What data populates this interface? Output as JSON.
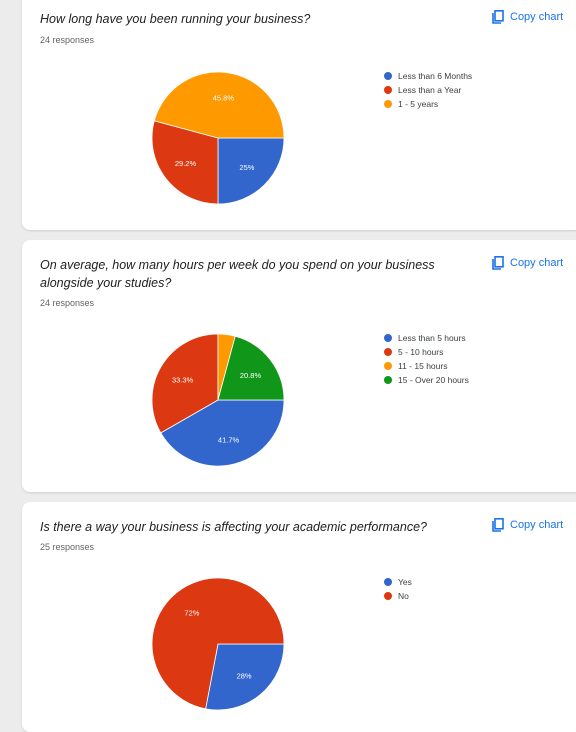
{
  "colors": {
    "blue": "#3366cc",
    "red": "#dc3912",
    "orange": "#ff9900",
    "green": "#109618",
    "accent": "#1a73e8"
  },
  "copy_label": "Copy chart",
  "questions": [
    {
      "title": "How long have you been running your business?",
      "responses": "24 responses"
    },
    {
      "title": "On average, how many hours per week do you spend on your business alongside your studies?",
      "responses": "24 responses"
    },
    {
      "title": "Is there a way your business is affecting your academic performance?",
      "responses": "25 responses"
    }
  ],
  "chart_data": [
    {
      "type": "pie",
      "title": "How long have you been running your business?",
      "categories": [
        "Less than 6 Months",
        "Less than a Year",
        "1 - 5 years"
      ],
      "values": [
        25,
        29.2,
        45.8
      ],
      "labels": [
        "25%",
        "29.2%",
        "45.8%"
      ],
      "colors": [
        "#3366cc",
        "#dc3912",
        "#ff9900"
      ],
      "legend": "right"
    },
    {
      "type": "pie",
      "title": "On average, how many hours per week do you spend on your business alongside your studies?",
      "categories": [
        "Less than 5 hours",
        "5 - 10 hours",
        "11 - 15 hours",
        "15 - Over 20 hours"
      ],
      "values": [
        41.7,
        33.3,
        4.2,
        20.8
      ],
      "labels": [
        "41.7%",
        "33.3%",
        "",
        "20.8%"
      ],
      "colors": [
        "#3366cc",
        "#dc3912",
        "#ff9900",
        "#109618"
      ],
      "legend": "right"
    },
    {
      "type": "pie",
      "title": "Is there a way your business is affecting your academic performance?",
      "categories": [
        "Yes",
        "No"
      ],
      "values": [
        28,
        72
      ],
      "labels": [
        "28%",
        "72%"
      ],
      "colors": [
        "#3366cc",
        "#dc3912"
      ],
      "legend": "right"
    }
  ]
}
